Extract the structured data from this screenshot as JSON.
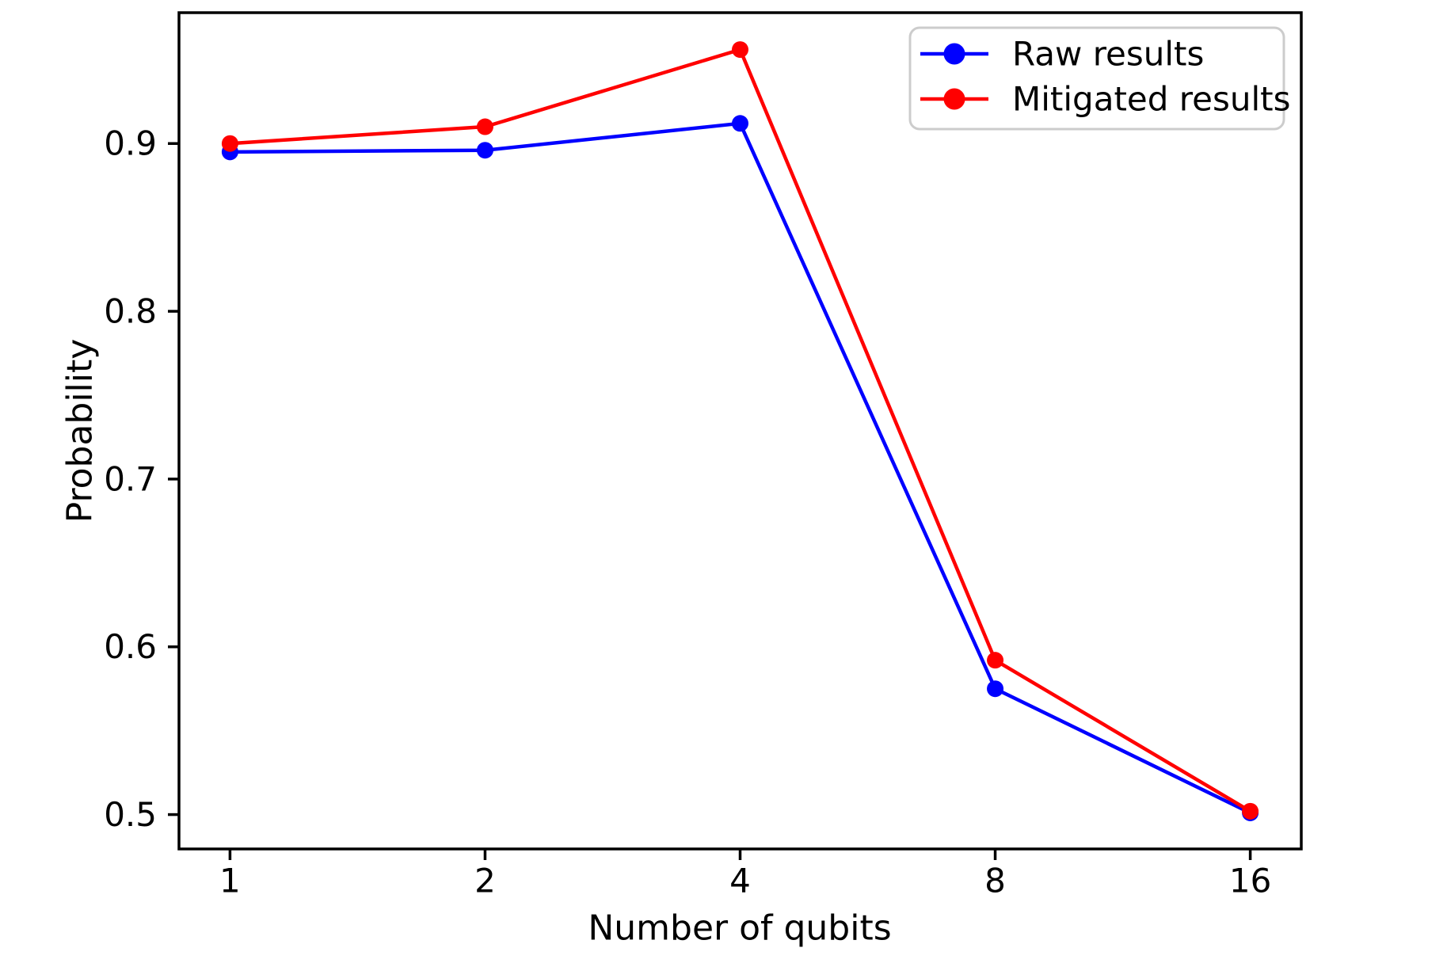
{
  "chart_data": {
    "type": "line",
    "title": "",
    "xlabel": "Number of qubits",
    "ylabel": "Probability",
    "x_scale": "log2",
    "x": [
      1,
      2,
      4,
      8,
      16
    ],
    "x_tick_labels": [
      "1",
      "2",
      "4",
      "8",
      "16"
    ],
    "y_ticks": [
      0.5,
      0.6,
      0.7,
      0.8,
      0.9
    ],
    "y_tick_labels": [
      "0.5",
      "0.6",
      "0.7",
      "0.8",
      "0.9"
    ],
    "xlim_log2": [
      -0.2,
      4.2
    ],
    "ylim": [
      0.4795,
      0.978
    ],
    "grid": false,
    "legend_position": "upper right",
    "marker": "circle",
    "series": [
      {
        "name": "Raw results",
        "color": "#0000ff",
        "values": [
          0.895,
          0.896,
          0.912,
          0.575,
          0.501
        ]
      },
      {
        "name": "Mitigated results",
        "color": "#ff0000",
        "values": [
          0.9,
          0.91,
          0.956,
          0.592,
          0.502
        ]
      }
    ]
  },
  "colors": {
    "axis": "#000000",
    "background": "#ffffff",
    "legend_border": "#cccccc",
    "legend_fill": "#ffffff"
  }
}
